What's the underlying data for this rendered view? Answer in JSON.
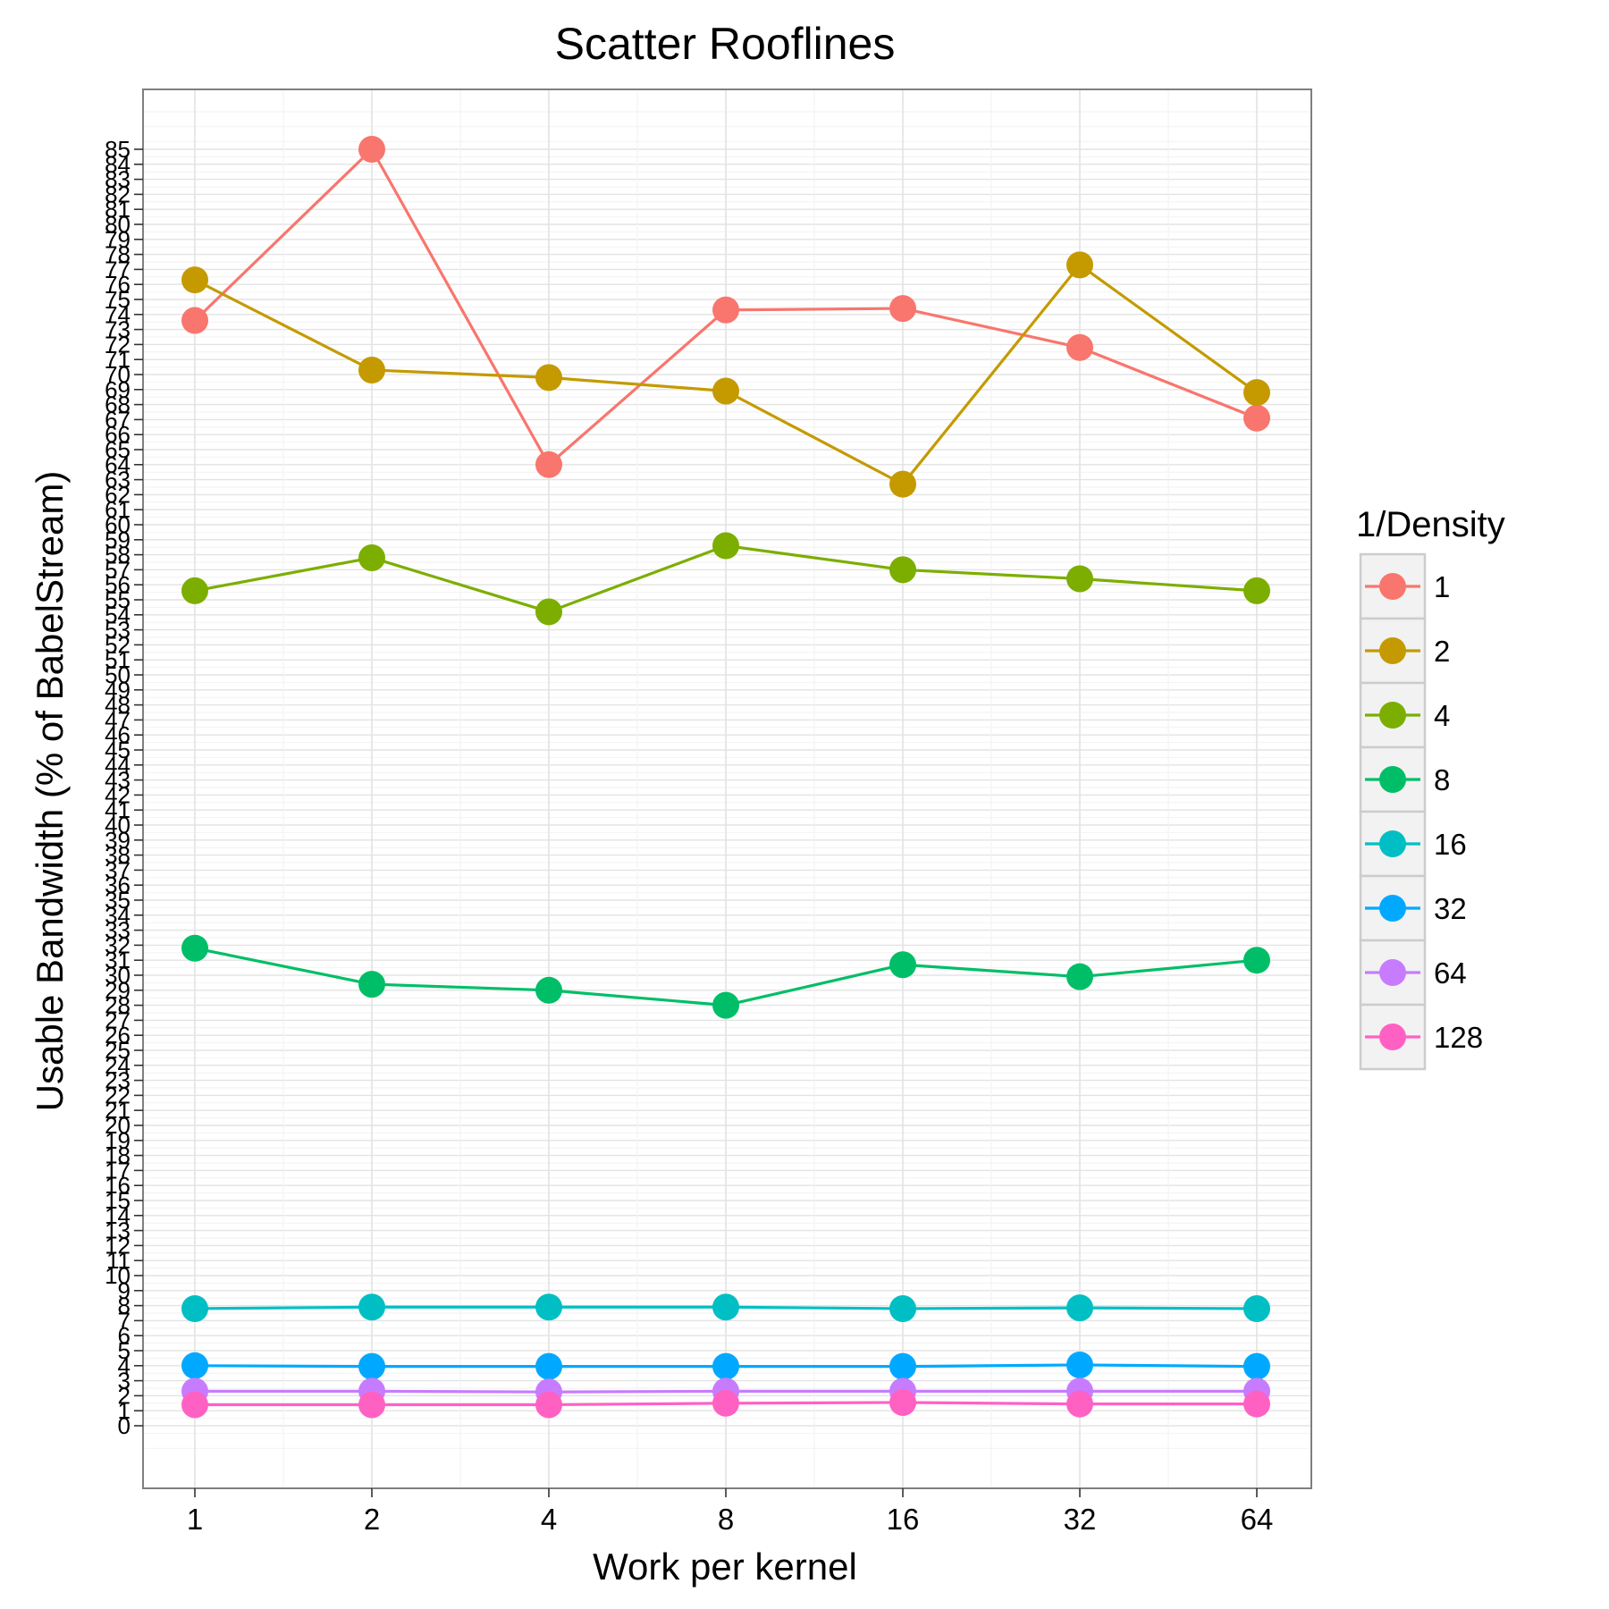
{
  "chart_data": {
    "type": "line",
    "title": "Scatter Rooflines",
    "xlabel": "Work per kernel",
    "ylabel": "Usable Bandwidth (% of BabelStream)",
    "x": [
      "1",
      "2",
      "4",
      "8",
      "16",
      "32",
      "64"
    ],
    "x_scale": "log2",
    "ylim": [
      0,
      85
    ],
    "y_ticks": [
      0,
      1,
      2,
      3,
      4,
      5,
      6,
      7,
      8,
      9,
      10,
      11,
      12,
      13,
      14,
      15,
      16,
      17,
      18,
      19,
      20,
      21,
      22,
      23,
      24,
      25,
      26,
      27,
      28,
      29,
      30,
      31,
      32,
      33,
      34,
      35,
      36,
      37,
      38,
      39,
      40,
      41,
      42,
      43,
      44,
      45,
      46,
      47,
      48,
      49,
      50,
      51,
      52,
      53,
      54,
      55,
      56,
      57,
      58,
      59,
      60,
      61,
      62,
      63,
      64,
      65,
      66,
      67,
      68,
      69,
      70,
      71,
      72,
      73,
      74,
      75,
      76,
      77,
      78,
      79,
      80,
      81,
      82,
      83,
      84,
      85
    ],
    "grid": true,
    "legend": {
      "title": "1/Density",
      "position": "right"
    },
    "series": [
      {
        "name": "1",
        "color": "#F8766D",
        "values": [
          73.6,
          85.0,
          64.0,
          74.3,
          74.4,
          71.8,
          67.1
        ]
      },
      {
        "name": "2",
        "color": "#C49A00",
        "values": [
          76.3,
          70.3,
          69.8,
          68.9,
          62.7,
          77.3,
          68.8
        ]
      },
      {
        "name": "4",
        "color": "#7CAE00",
        "values": [
          55.6,
          57.8,
          54.2,
          58.6,
          57.0,
          56.4,
          55.6
        ]
      },
      {
        "name": "8",
        "color": "#00BE67",
        "values": [
          31.8,
          29.4,
          29.0,
          28.0,
          30.7,
          29.9,
          31.0
        ]
      },
      {
        "name": "16",
        "color": "#00BFC4",
        "values": [
          7.8,
          7.9,
          7.9,
          7.9,
          7.8,
          7.85,
          7.8
        ]
      },
      {
        "name": "32",
        "color": "#00A9FF",
        "values": [
          4.0,
          3.95,
          3.95,
          3.95,
          3.95,
          4.05,
          3.95
        ]
      },
      {
        "name": "64",
        "color": "#C77CFF",
        "values": [
          2.3,
          2.3,
          2.25,
          2.3,
          2.3,
          2.3,
          2.3
        ]
      },
      {
        "name": "128",
        "color": "#FF61C3",
        "values": [
          1.4,
          1.4,
          1.4,
          1.5,
          1.55,
          1.45,
          1.45
        ]
      }
    ]
  }
}
